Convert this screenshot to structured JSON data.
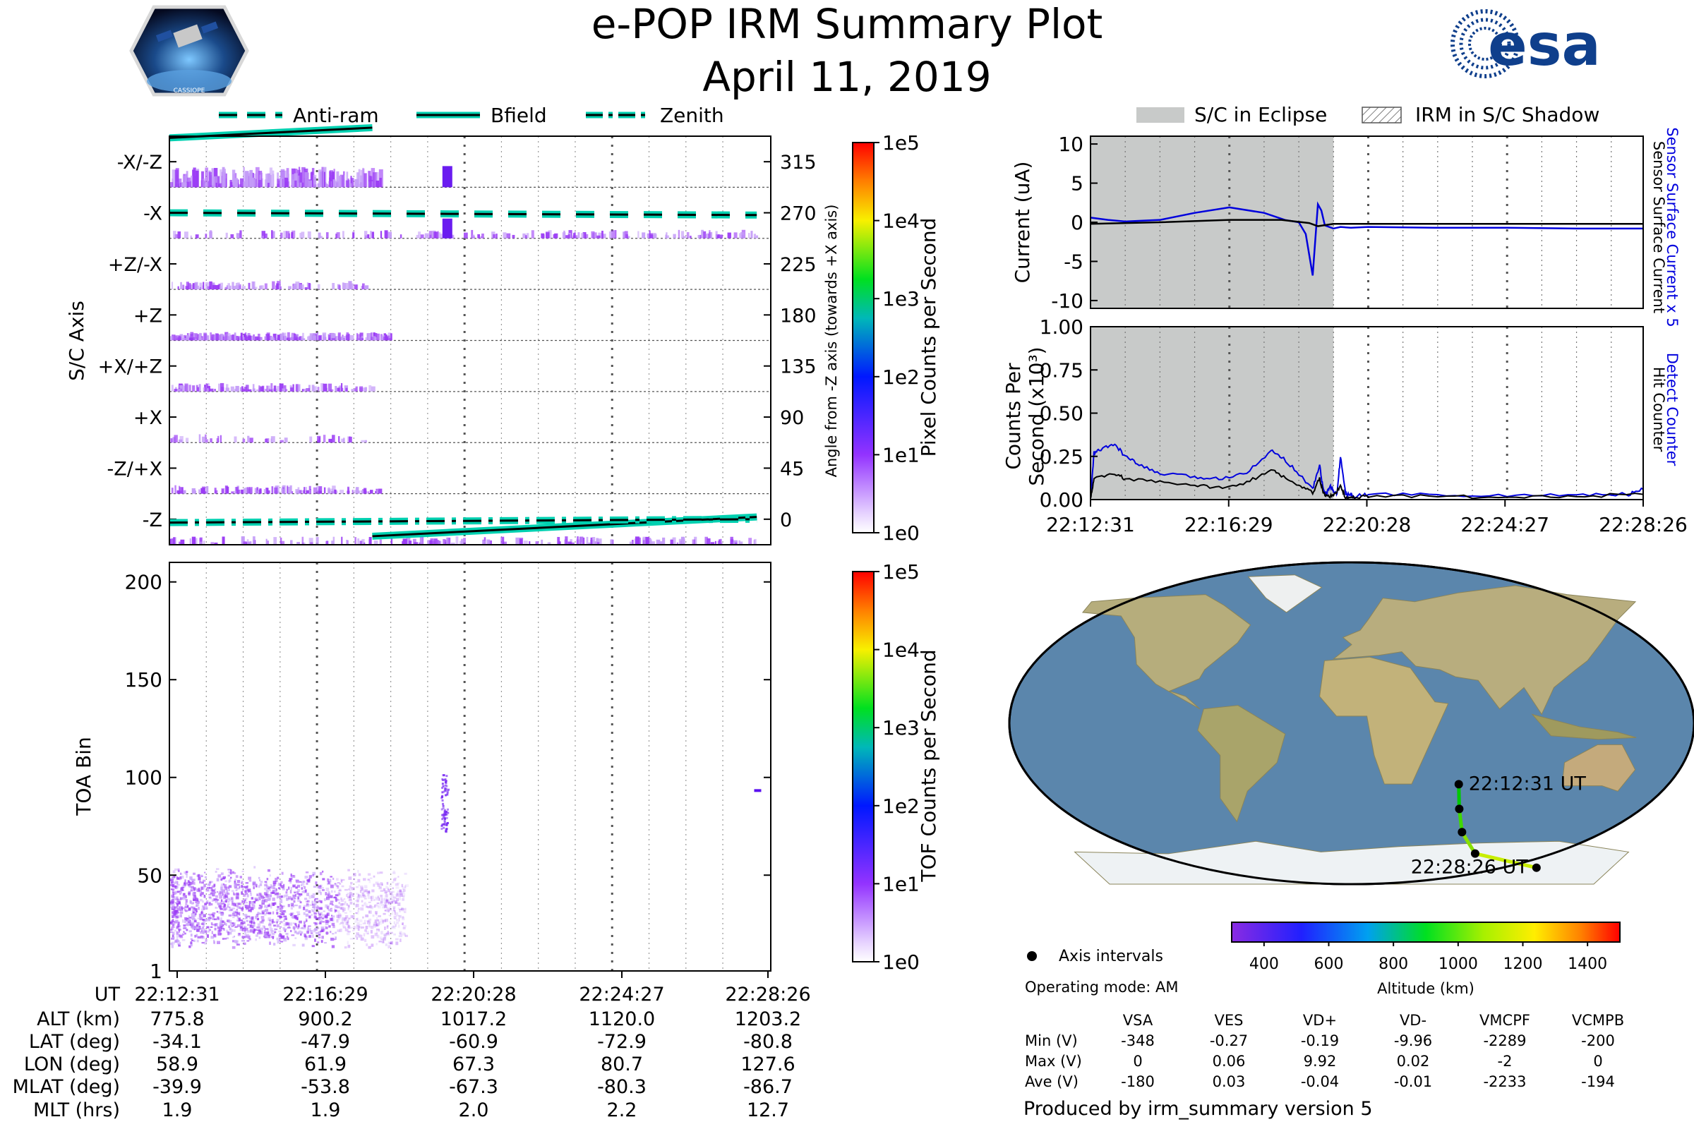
{
  "header": {
    "title": "e-POP IRM Summary Plot",
    "date": "April 11, 2019",
    "mission_badge_label": "CASSIOPE",
    "agency_logo_text": "esa"
  },
  "chart_data": [
    {
      "id": "sc-axis-spectrogram",
      "type": "heatmap",
      "ylabel": "S/C Axis",
      "y_categories": [
        "-X/-Z",
        "-X",
        "+Z/-X",
        "+Z",
        "+X/+Z",
        "+X",
        "-Z/+X",
        "-Z"
      ],
      "y2label": "Angle from -Z axis (towards +X axis)",
      "y2_ticks": [
        315,
        270,
        225,
        180,
        135,
        90,
        45,
        0
      ],
      "y2lim": [
        -22.5,
        337.5
      ],
      "x_ticks": [
        "22:12:31",
        "22:16:29",
        "22:20:28",
        "22:24:27",
        "22:28:26"
      ],
      "x_minutes": [
        0,
        3.97,
        7.95,
        11.93,
        15.92
      ],
      "legend": [
        "Anti-ram",
        "Bfield",
        "Zenith"
      ],
      "colorbar": {
        "label": "Pixel Counts per Second",
        "scale": "log",
        "ticks": [
          "1e0",
          "1e1",
          "1e2",
          "1e3",
          "1e4",
          "1e5"
        ]
      },
      "angle_series": [
        {
          "name": "Anti-ram",
          "style": "dashed",
          "x": [
            0,
            15.92
          ],
          "y": [
            270,
            268
          ]
        },
        {
          "name": "Bfield",
          "style": "solid",
          "x": [
            0,
            5.5
          ],
          "y": [
            336,
            345
          ],
          "x2": [
            5.5,
            15.92
          ],
          "y2": [
            -15,
            2
          ]
        },
        {
          "name": "Zenith",
          "style": "dashdot",
          "x": [
            0,
            15.92
          ],
          "y": [
            -3,
            0
          ]
        }
      ]
    },
    {
      "id": "toa-spectrogram",
      "type": "heatmap",
      "ylabel": "TOA Bin",
      "y_ticks": [
        200,
        150,
        100,
        50,
        1
      ],
      "ylim": [
        1,
        210
      ],
      "x_ticks": [
        "22:12:31",
        "22:16:29",
        "22:20:28",
        "22:24:27",
        "22:28:26"
      ],
      "colorbar": {
        "label": "TOF Counts per Second",
        "scale": "log",
        "ticks": [
          "1e0",
          "1e1",
          "1e2",
          "1e3",
          "1e4",
          "1e5"
        ]
      }
    },
    {
      "id": "current-plot",
      "type": "line",
      "ylabel": "Current (uA)",
      "y_ticks": [
        10,
        5,
        0,
        -5,
        -10
      ],
      "ylim": [
        -11,
        11
      ],
      "legend": [
        "S/C in Eclipse",
        "IRM in S/C Shadow"
      ],
      "eclipse_end_minute": 7.0,
      "right_labels": [
        "Sensor Surface Current x 5",
        "Sensor Surface Current"
      ],
      "series": [
        {
          "name": "Sensor Surface Current x 5",
          "color": "#0000dd",
          "x": [
            0,
            0.5,
            1,
            2,
            3,
            4,
            5,
            5.6,
            6,
            6.2,
            6.4,
            6.55,
            6.65,
            6.75,
            7.0,
            7.2,
            7.5,
            8,
            10,
            12,
            14,
            15.92
          ],
          "y": [
            0.6,
            0.3,
            0.1,
            0.3,
            1.2,
            1.9,
            1.2,
            0.3,
            0,
            -1.5,
            -6.8,
            2.3,
            1.5,
            -0.4,
            -0.8,
            -0.6,
            -0.7,
            -0.6,
            -0.7,
            -0.7,
            -0.8,
            -0.8
          ]
        },
        {
          "name": "Sensor Surface Current",
          "color": "#000000",
          "x": [
            0,
            2,
            4,
            5.5,
            6.3,
            6.55,
            7.0,
            9,
            12,
            15.92
          ],
          "y": [
            -0.2,
            0,
            0.3,
            0.3,
            -0.1,
            -0.5,
            -0.2,
            -0.2,
            -0.2,
            -0.2
          ]
        }
      ]
    },
    {
      "id": "counts-plot",
      "type": "line",
      "ylabel": "Counts Per Second (x10³)",
      "y_ticks": [
        "1.00",
        "0.75",
        "0.50",
        "0.25",
        "0.00"
      ],
      "ylim": [
        0,
        1
      ],
      "eclipse_end_minute": 7.0,
      "x_ticks": [
        "22:12:31",
        "22:16:29",
        "22:20:28",
        "22:24:27",
        "22:28:26"
      ],
      "right_labels": [
        "Detect Counter",
        "Hit Counter"
      ],
      "series": [
        {
          "name": "Detect Counter",
          "color": "#0000dd",
          "x": [
            0,
            0.1,
            0.3,
            0.7,
            1.0,
            1.4,
            2,
            3,
            3.7,
            4.5,
            5.2,
            5.5,
            6,
            6.4,
            6.6,
            6.7,
            6.8,
            6.9,
            7.0,
            7.1,
            7.2,
            7.35,
            7.5,
            7.6,
            8,
            10,
            12,
            14,
            15.5,
            15.92
          ],
          "y": [
            0,
            0.27,
            0.29,
            0.32,
            0.25,
            0.2,
            0.15,
            0.13,
            0.12,
            0.16,
            0.28,
            0.25,
            0.15,
            0.06,
            0.2,
            0.06,
            0.03,
            0.08,
            0.05,
            0.03,
            0.25,
            0.03,
            0.03,
            0.02,
            0.03,
            0.03,
            0.02,
            0.03,
            0.03,
            0.06
          ]
        },
        {
          "name": "Hit Counter",
          "color": "#000000",
          "x": [
            0,
            0.1,
            0.7,
            1.0,
            2,
            3,
            3.7,
            4.5,
            5.2,
            5.5,
            6,
            6.4,
            6.6,
            6.7,
            6.8,
            7.0,
            7.2,
            7.35,
            7.6,
            8,
            10,
            12,
            14,
            15.92
          ],
          "y": [
            0,
            0.12,
            0.15,
            0.12,
            0.1,
            0.08,
            0.07,
            0.1,
            0.17,
            0.14,
            0.08,
            0.04,
            0.12,
            0.04,
            0.02,
            0.02,
            0.08,
            0.01,
            0.01,
            0.02,
            0.02,
            0.01,
            0.02,
            0.03
          ]
        }
      ]
    },
    {
      "id": "orbit-map",
      "type": "scatter",
      "description_labels": [
        "22:12:31 UT",
        "22:28:26 UT"
      ],
      "track_lat": [
        -34.1,
        -47.9,
        -60.9,
        -72.9,
        -80.8
      ],
      "track_lon": [
        58.9,
        61.9,
        67.3,
        80.7,
        127.6
      ],
      "track_altitude_km": [
        775.8,
        900.2,
        1017.2,
        1120.0,
        1203.2
      ],
      "colorbar": {
        "label": "Altitude (km)",
        "ticks": [
          400,
          600,
          800,
          1000,
          1200,
          1400
        ],
        "range": [
          300,
          1500
        ]
      }
    }
  ],
  "ephemeris": {
    "row_labels": [
      "UT",
      "ALT (km)",
      "LAT (deg)",
      "LON (deg)",
      "MLAT (deg)",
      "MLT (hrs)"
    ],
    "columns": [
      [
        "22:12:31",
        "775.8",
        "-34.1",
        "58.9",
        "-39.9",
        "1.9"
      ],
      [
        "22:16:29",
        "900.2",
        "-47.9",
        "61.9",
        "-53.8",
        "1.9"
      ],
      [
        "22:20:28",
        "1017.2",
        "-60.9",
        "67.3",
        "-67.3",
        "2.0"
      ],
      [
        "22:24:27",
        "1120.0",
        "-72.9",
        "80.7",
        "-80.3",
        "2.2"
      ],
      [
        "22:28:26",
        "1203.2",
        "-80.8",
        "127.6",
        "-86.7",
        "12.7"
      ]
    ]
  },
  "info": {
    "axis_intervals": "Axis intervals",
    "operating_mode": "Operating mode: AM",
    "stats_headers": [
      "VSA",
      "VES",
      "VD+",
      "VD-",
      "VMCPF",
      "VCMPB"
    ],
    "stats_rows": [
      {
        "label": "Min (V)",
        "values": [
          "-348",
          "-0.27",
          "-0.19",
          "-9.96",
          "-2289",
          "-200"
        ]
      },
      {
        "label": "Max (V)",
        "values": [
          "0",
          "0.06",
          "9.92",
          "0.02",
          "-2",
          "0"
        ]
      },
      {
        "label": "Ave (V)",
        "values": [
          "-180",
          "0.03",
          "-0.04",
          "-0.01",
          "-2233",
          "-194"
        ]
      }
    ],
    "footer": "Produced by irm_summary version 5"
  },
  "colors": {
    "bfield": "#00d0b0",
    "eclipse": "#c8cac9",
    "spectrogram": "#9b3cf5",
    "ocean": "#5b86ac",
    "land": "#b6ad7c"
  }
}
